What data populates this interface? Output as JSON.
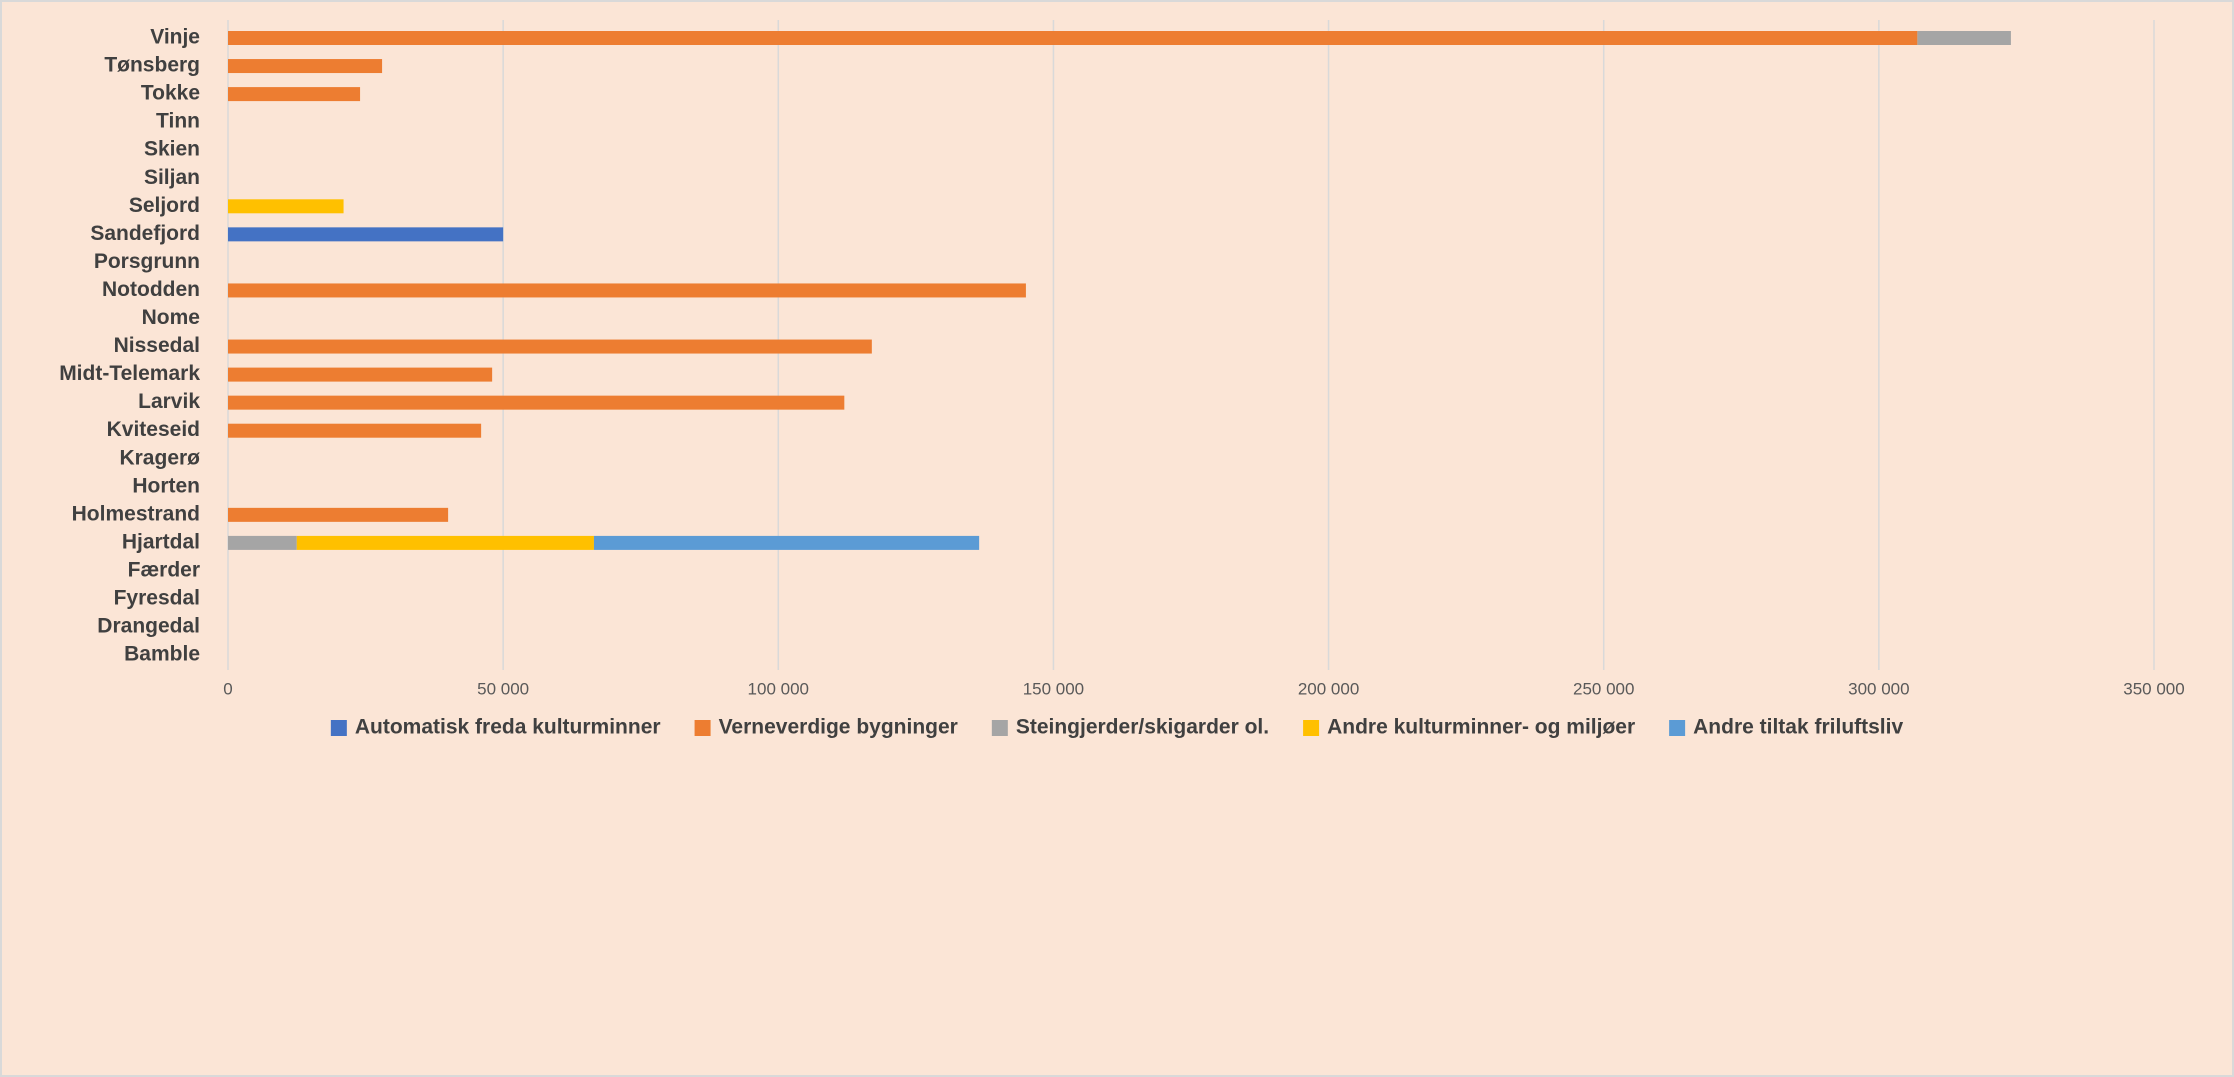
{
  "chart_data": {
    "type": "bar",
    "orientation": "horizontal",
    "stacked": true,
    "grid": true,
    "legend": "bottom",
    "categories": [
      "Vinje",
      "Tønsberg",
      "Tokke",
      "Tinn",
      "Skien",
      "Siljan",
      "Seljord",
      "Sandefjord",
      "Porsgrunn",
      "Notodden",
      "Nome",
      "Nissedal",
      "Midt-Telemark",
      "Larvik",
      "Kviteseid",
      "Kragerø",
      "Horten",
      "Holmestrand",
      "Hjartdal",
      "Færder",
      "Fyresdal",
      "Drangedal",
      "Bamble"
    ],
    "series": [
      {
        "name": "Automatisk freda kulturminner",
        "color": "#4472c4",
        "values": [
          null,
          null,
          null,
          null,
          null,
          null,
          null,
          50000,
          null,
          null,
          null,
          null,
          null,
          null,
          null,
          null,
          null,
          null,
          null,
          null,
          null,
          null,
          null
        ]
      },
      {
        "name": "Verneverdige bygninger",
        "color": "#ed7d31",
        "values": [
          307000,
          28000,
          24000,
          null,
          null,
          null,
          null,
          null,
          null,
          145000,
          null,
          117000,
          48000,
          112000,
          46000,
          null,
          null,
          40000,
          null,
          null,
          null,
          null,
          null
        ]
      },
      {
        "name": "Steingjerder/skigarder ol.",
        "color": "#a5a5a5",
        "values": [
          17000,
          null,
          null,
          null,
          null,
          null,
          null,
          null,
          null,
          null,
          null,
          null,
          null,
          null,
          null,
          null,
          null,
          null,
          12500,
          null,
          null,
          null,
          null
        ]
      },
      {
        "name": "Andre kulturminner- og miljøer",
        "color": "#ffc000",
        "values": [
          null,
          null,
          null,
          null,
          null,
          null,
          21000,
          null,
          null,
          null,
          null,
          null,
          null,
          null,
          null,
          null,
          null,
          null,
          54000,
          null,
          null,
          null,
          null
        ]
      },
      {
        "name": "Andre tiltak friluftsliv",
        "color": "#5b9bd5",
        "values": [
          null,
          null,
          null,
          null,
          null,
          null,
          null,
          null,
          null,
          null,
          null,
          null,
          null,
          null,
          null,
          null,
          null,
          null,
          70000,
          null,
          null,
          null,
          null
        ]
      }
    ],
    "xlim": [
      0,
      350000
    ],
    "xticks": [
      0,
      {
        "value": 50000,
        "label": "50 000"
      },
      {
        "value": 100000,
        "label": "100 000"
      },
      {
        "value": 150000,
        "label": "150 000"
      },
      {
        "value": 200000,
        "label": "200 000"
      },
      {
        "value": 250000,
        "label": "250 000"
      },
      {
        "value": 300000,
        "label": "300 000"
      },
      {
        "value": 350000,
        "label": "350 000"
      }
    ]
  }
}
